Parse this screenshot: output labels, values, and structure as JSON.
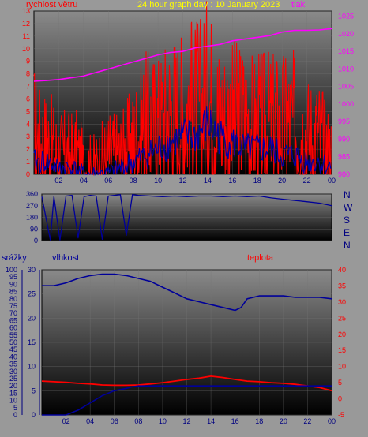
{
  "header": {
    "title": "24 hour graph day : 10 January 2023",
    "wind_label": "rychlost větru",
    "pressure_label": "tlak"
  },
  "bottom_header": {
    "rain_label": "srážky",
    "humidity_label": "vlhkost",
    "temp_label": "teplota"
  },
  "compass": [
    "N",
    "W",
    "S",
    "E",
    "N"
  ],
  "colors": {
    "wind": "#ff0000",
    "wind_avg": "#0000aa",
    "pressure": "#ff00ff",
    "direction": "#000099",
    "humidity": "#000099",
    "temperature": "#ff0000",
    "rain": "#000099",
    "title": "#ffff00",
    "axis_red": "#ff0000",
    "axis_pink": "#ff00ff"
  },
  "chart_data": [
    {
      "type": "line",
      "xticks": [
        "02",
        "04",
        "06",
        "08",
        "10",
        "12",
        "14",
        "16",
        "18",
        "20",
        "22",
        "00"
      ],
      "xlim": [
        0,
        24
      ],
      "y_left": {
        "label": "rychlost větru",
        "ticks": [
          0,
          1,
          2,
          3,
          4,
          5,
          6,
          7,
          8,
          9,
          10,
          11,
          12,
          13
        ],
        "ylim": [
          0,
          13
        ]
      },
      "y_right": {
        "label": "tlak",
        "ticks": [
          980,
          985,
          990,
          995,
          1000,
          1005,
          1010,
          1015,
          1020,
          1025
        ],
        "ylim": [
          980,
          1026.5
        ]
      },
      "series": [
        {
          "name": "rychlost větru",
          "axis": "left",
          "x": [
            0,
            0.5,
            1,
            1.5,
            2,
            2.5,
            3,
            3.5,
            4,
            4.5,
            5,
            5.5,
            6,
            6.5,
            7,
            7.5,
            8,
            8.5,
            9,
            9.5,
            10,
            10.5,
            11,
            11.5,
            12,
            12.5,
            13,
            13.5,
            14,
            14.5,
            15,
            15.5,
            16,
            16.5,
            17,
            17.5,
            18,
            18.5,
            19,
            19.5,
            20,
            20.5,
            21,
            21.5,
            22,
            22.5,
            23,
            23.5,
            24
          ],
          "values": [
            3.5,
            2.5,
            2.5,
            2,
            1.5,
            1.5,
            1.5,
            1.5,
            0.5,
            0.5,
            0.5,
            1,
            1.5,
            1.5,
            1.5,
            2,
            2.5,
            3.5,
            4,
            4,
            4,
            4.5,
            5,
            5,
            5,
            5.5,
            5.5,
            5.5,
            6.5,
            5.5,
            4.5,
            4.5,
            4.5,
            4.5,
            4.5,
            4,
            4,
            4,
            4,
            4,
            4,
            4,
            4,
            3.5,
            3,
            3,
            3,
            2,
            1.5
          ]
        },
        {
          "name": "wind-avg",
          "axis": "left",
          "x": [
            0,
            1,
            2,
            3,
            4,
            5,
            6,
            7,
            8,
            9,
            10,
            11,
            12,
            13,
            14,
            15,
            16,
            17,
            18,
            19,
            20,
            21,
            22,
            23,
            24
          ],
          "values": [
            1,
            1,
            0.5,
            0.5,
            0,
            0,
            0,
            0.5,
            1,
            1.5,
            2,
            2.5,
            3,
            3,
            4,
            3,
            2.5,
            2,
            2,
            2,
            1.5,
            1.5,
            1,
            1,
            0.5
          ]
        },
        {
          "name": "tlak",
          "axis": "right",
          "x": [
            0,
            1,
            2,
            3,
            4,
            5,
            6,
            7,
            8,
            9,
            10,
            11,
            12,
            13,
            14,
            15,
            16,
            17,
            18,
            19,
            20,
            21,
            22,
            23,
            24
          ],
          "values": [
            1006.5,
            1006.7,
            1007,
            1007.5,
            1008,
            1009,
            1010,
            1011,
            1012,
            1013,
            1014,
            1014.7,
            1015,
            1016,
            1016.5,
            1017,
            1018,
            1018.5,
            1019,
            1019.5,
            1020.5,
            1021,
            1021,
            1021.1,
            1021.5
          ]
        }
      ]
    },
    {
      "type": "line",
      "y_left": {
        "ticks": [
          0,
          90,
          180,
          270,
          360
        ],
        "ylim": [
          0,
          360
        ]
      },
      "series": [
        {
          "name": "direction",
          "x": [
            0,
            0.7,
            1,
            1.5,
            2,
            2.5,
            3,
            3.5,
            4,
            4.5,
            5,
            5.5,
            6,
            6.5,
            7,
            7.5,
            8,
            9,
            10,
            11,
            12,
            13,
            14,
            15,
            16,
            17,
            18,
            19,
            20,
            21,
            22,
            23,
            24
          ],
          "values": [
            340,
            5,
            340,
            5,
            345,
            350,
            20,
            340,
            350,
            345,
            10,
            345,
            350,
            355,
            40,
            355,
            350,
            345,
            340,
            345,
            340,
            345,
            345,
            340,
            345,
            340,
            345,
            330,
            320,
            310,
            300,
            290,
            270
          ]
        }
      ]
    },
    {
      "type": "line",
      "xticks": [
        "02",
        "04",
        "06",
        "08",
        "10",
        "12",
        "14",
        "16",
        "18",
        "20",
        "22",
        "00"
      ],
      "xlim": [
        0,
        24
      ],
      "y_rain": {
        "label": "srážky",
        "ticks": [
          0,
          5,
          10,
          15,
          20,
          25,
          30,
          35,
          40,
          45,
          50,
          55,
          60,
          65,
          70,
          75,
          80,
          85,
          90,
          95,
          100
        ],
        "ylim": [
          0,
          100
        ]
      },
      "y_humidity": {
        "label": "vlhkost",
        "ticks": [
          0,
          5,
          10,
          15,
          20,
          25,
          30
        ],
        "ylim": [
          0,
          30
        ]
      },
      "y_temp": {
        "label": "teplota",
        "ticks": [
          -5,
          0,
          5,
          10,
          15,
          20,
          25,
          30,
          35,
          40
        ],
        "ylim": [
          -5,
          40
        ]
      },
      "series": [
        {
          "name": "vlhkost",
          "axis": "rain",
          "x": [
            0,
            1,
            2,
            3,
            4,
            5,
            6,
            7,
            8,
            9,
            10,
            11,
            12,
            13,
            14,
            15,
            16,
            16.5,
            17,
            18,
            19,
            20,
            21,
            22,
            23,
            24
          ],
          "values": [
            89,
            89,
            91,
            94,
            96,
            97,
            97,
            96,
            94,
            92,
            88,
            84,
            80,
            78,
            76,
            74,
            72,
            74,
            80,
            82,
            82,
            82,
            81,
            81,
            81,
            80
          ]
        },
        {
          "name": "teplota",
          "axis": "temp",
          "x": [
            0,
            1,
            2,
            3,
            4,
            5,
            6,
            7,
            8,
            9,
            10,
            11,
            12,
            13,
            14,
            15,
            16,
            17,
            18,
            19,
            20,
            21,
            22,
            23,
            24
          ],
          "values": [
            5.5,
            5.3,
            5.1,
            4.8,
            4.6,
            4.3,
            4.2,
            4.2,
            4.3,
            4.6,
            5,
            5.5,
            6,
            6.4,
            7,
            6.6,
            6,
            5.5,
            5.3,
            5,
            4.8,
            4.5,
            4,
            3.5,
            2.5
          ]
        },
        {
          "name": "srážky",
          "axis": "humidity",
          "x": [
            0,
            1,
            2,
            3,
            4,
            5,
            6,
            7,
            7.5,
            8,
            9,
            10,
            11,
            12,
            13,
            14,
            15,
            16,
            17,
            18,
            19,
            20,
            21,
            22,
            23,
            24
          ],
          "values": [
            0,
            0,
            0,
            1,
            2.5,
            4,
            5,
            5.5,
            5.8,
            6,
            6,
            6,
            6,
            6,
            6,
            6,
            6,
            6,
            6,
            6,
            6,
            6,
            6,
            6,
            6,
            6
          ]
        }
      ]
    }
  ]
}
